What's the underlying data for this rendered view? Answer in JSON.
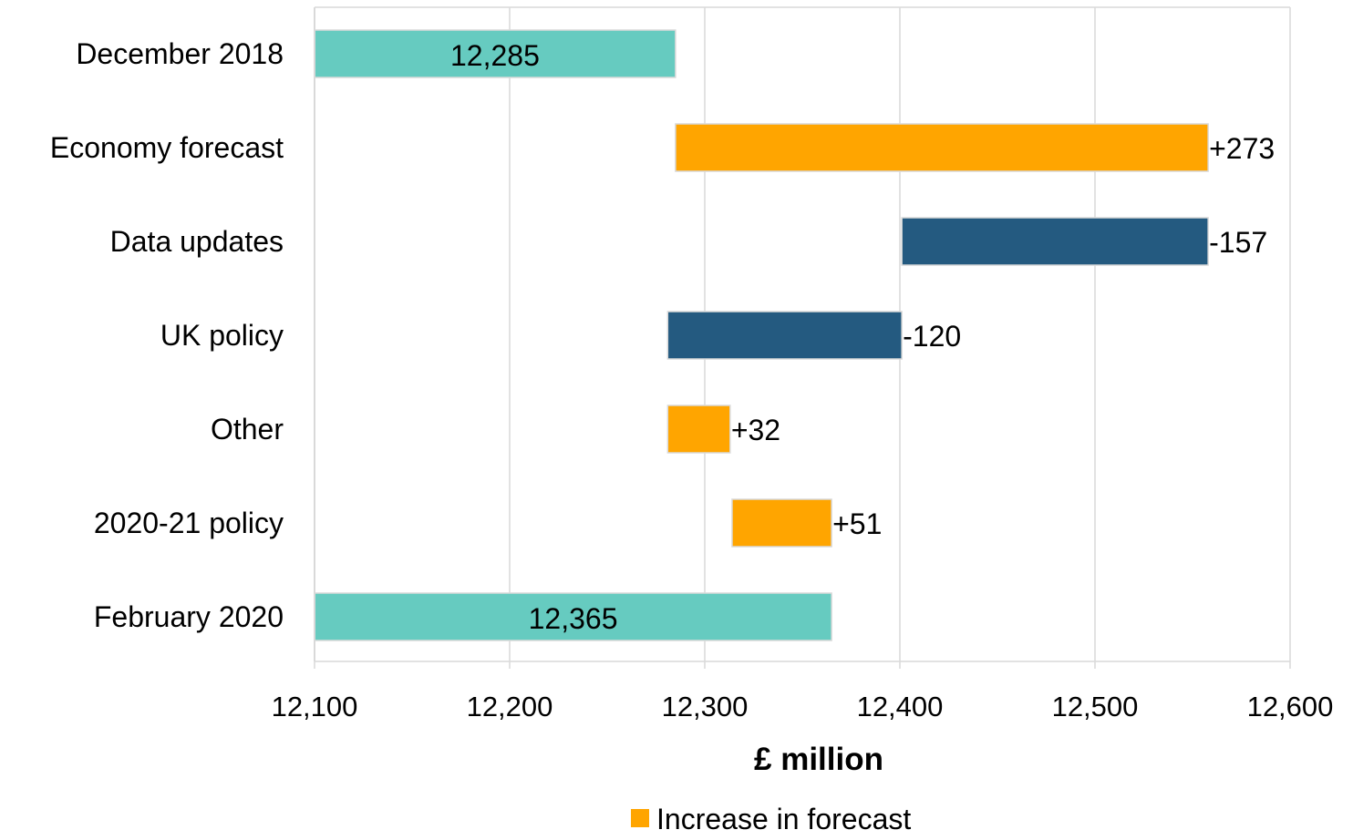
{
  "chart_data": {
    "type": "bar",
    "orientation": "horizontal",
    "variant": "waterfall",
    "categories": [
      "December 2018",
      "Economy forecast",
      "Data updates",
      "UK policy",
      "Other",
      "2020-21 policy",
      "February 2020"
    ],
    "bars": [
      {
        "category": "December 2018",
        "kind": "total",
        "start": 12100,
        "end": 12285,
        "label": "12,285"
      },
      {
        "category": "Economy forecast",
        "kind": "increase",
        "start": 12285,
        "end": 12558,
        "label": "+273"
      },
      {
        "category": "Data updates",
        "kind": "decrease",
        "start": 12401,
        "end": 12558,
        "label": "-157"
      },
      {
        "category": "UK policy",
        "kind": "decrease",
        "start": 12281,
        "end": 12401,
        "label": "-120"
      },
      {
        "category": "Other",
        "kind": "increase",
        "start": 12281,
        "end": 12313,
        "label": "+32"
      },
      {
        "category": "2020-21 policy",
        "kind": "increase",
        "start": 12314,
        "end": 12365,
        "label": "+51"
      },
      {
        "category": "February 2020",
        "kind": "total",
        "start": 12100,
        "end": 12365,
        "label": "12,365"
      }
    ],
    "xlim": [
      12100,
      12600
    ],
    "xticks": [
      12100,
      12200,
      12300,
      12400,
      12500,
      12600
    ],
    "xtick_labels": [
      "12,100",
      "12,200",
      "12,300",
      "12,400",
      "12,500",
      "12,600"
    ],
    "xlabel": "£ million",
    "ylabel": "",
    "title": "",
    "grid": "vertical",
    "legend": {
      "position": "bottom",
      "entries": [
        {
          "label": "Increase in forecast",
          "kind": "increase"
        }
      ]
    },
    "colors": {
      "total": "#66CBC0",
      "increase": "#FFA500",
      "decrease": "#245A80",
      "grid": "#D9D9D9",
      "bar_border": "#D9D9D9"
    }
  }
}
